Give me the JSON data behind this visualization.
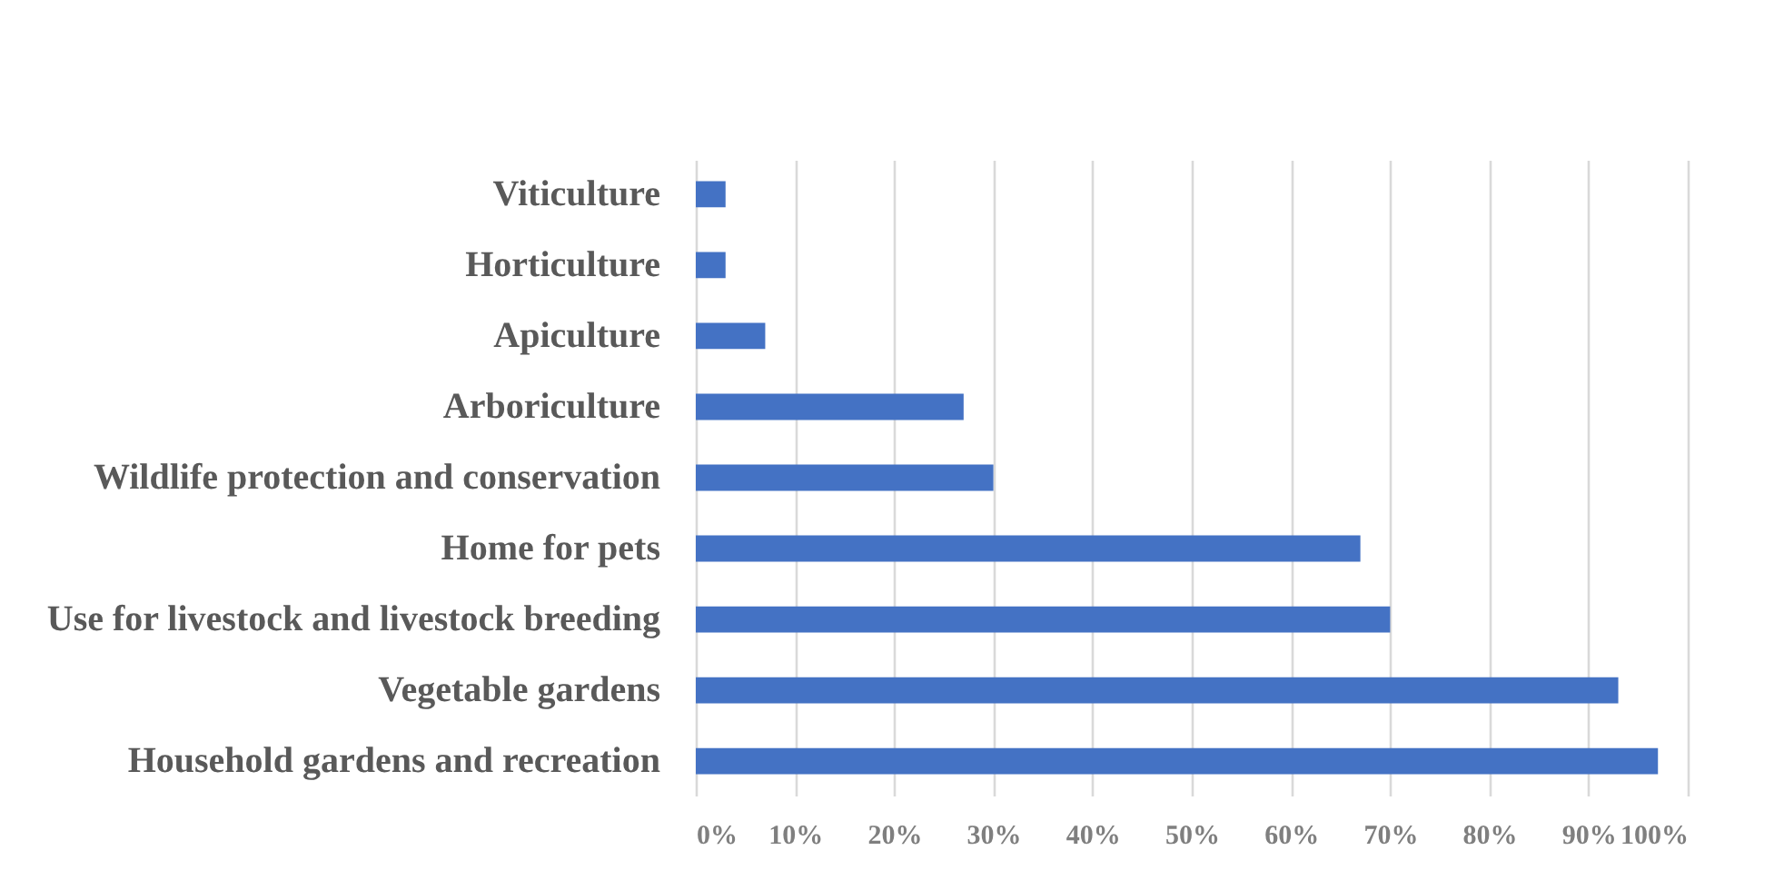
{
  "chart_data": {
    "type": "bar",
    "orientation": "horizontal",
    "categories": [
      "Viticulture",
      "Horticulture",
      "Apiculture",
      "Arboriculture",
      "Wildlife protection and conservation",
      "Home for pets",
      "Use for livestock and livestock breeding",
      "Vegetable gardens",
      "Household gardens and recreation"
    ],
    "values": [
      3,
      3,
      7,
      27,
      30,
      67,
      70,
      93,
      97
    ],
    "color": "#4472c4",
    "xlim": [
      0,
      100
    ],
    "xticks": [
      {
        "value": 0,
        "label": "0%"
      },
      {
        "value": 10,
        "label": "10%"
      },
      {
        "value": 20,
        "label": "20%"
      },
      {
        "value": 30,
        "label": "30%"
      },
      {
        "value": 40,
        "label": "40%"
      },
      {
        "value": 50,
        "label": "50%"
      },
      {
        "value": 60,
        "label": "60%"
      },
      {
        "value": 70,
        "label": "70%"
      },
      {
        "value": 80,
        "label": "80%"
      },
      {
        "value": 90,
        "label": "90%"
      },
      {
        "value": 100,
        "label": "100%"
      }
    ],
    "grid": "x"
  }
}
